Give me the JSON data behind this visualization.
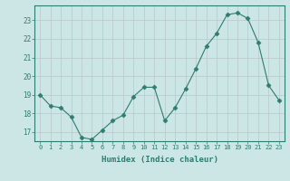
{
  "x": [
    0,
    1,
    2,
    3,
    4,
    5,
    6,
    7,
    8,
    9,
    10,
    11,
    12,
    13,
    14,
    15,
    16,
    17,
    18,
    19,
    20,
    21,
    22,
    23
  ],
  "y": [
    19.0,
    18.4,
    18.3,
    17.8,
    16.7,
    16.6,
    17.1,
    17.6,
    17.9,
    18.9,
    19.4,
    19.4,
    17.6,
    18.3,
    19.3,
    20.4,
    21.6,
    22.3,
    23.3,
    23.4,
    23.1,
    21.8,
    19.5,
    18.7
  ],
  "line_color": "#2e7d6e",
  "marker": "D",
  "marker_size": 2.5,
  "bg_color": "#cce5e5",
  "grid_color": "#b8c8c8",
  "xlabel": "Humidex (Indice chaleur)",
  "xlim": [
    -0.5,
    23.5
  ],
  "ylim": [
    16.5,
    23.8
  ],
  "yticks": [
    17,
    18,
    19,
    20,
    21,
    22,
    23
  ],
  "xticks": [
    0,
    1,
    2,
    3,
    4,
    5,
    6,
    7,
    8,
    9,
    10,
    11,
    12,
    13,
    14,
    15,
    16,
    17,
    18,
    19,
    20,
    21,
    22,
    23
  ],
  "tick_color": "#2e7d6e",
  "label_color": "#2e7d6e"
}
